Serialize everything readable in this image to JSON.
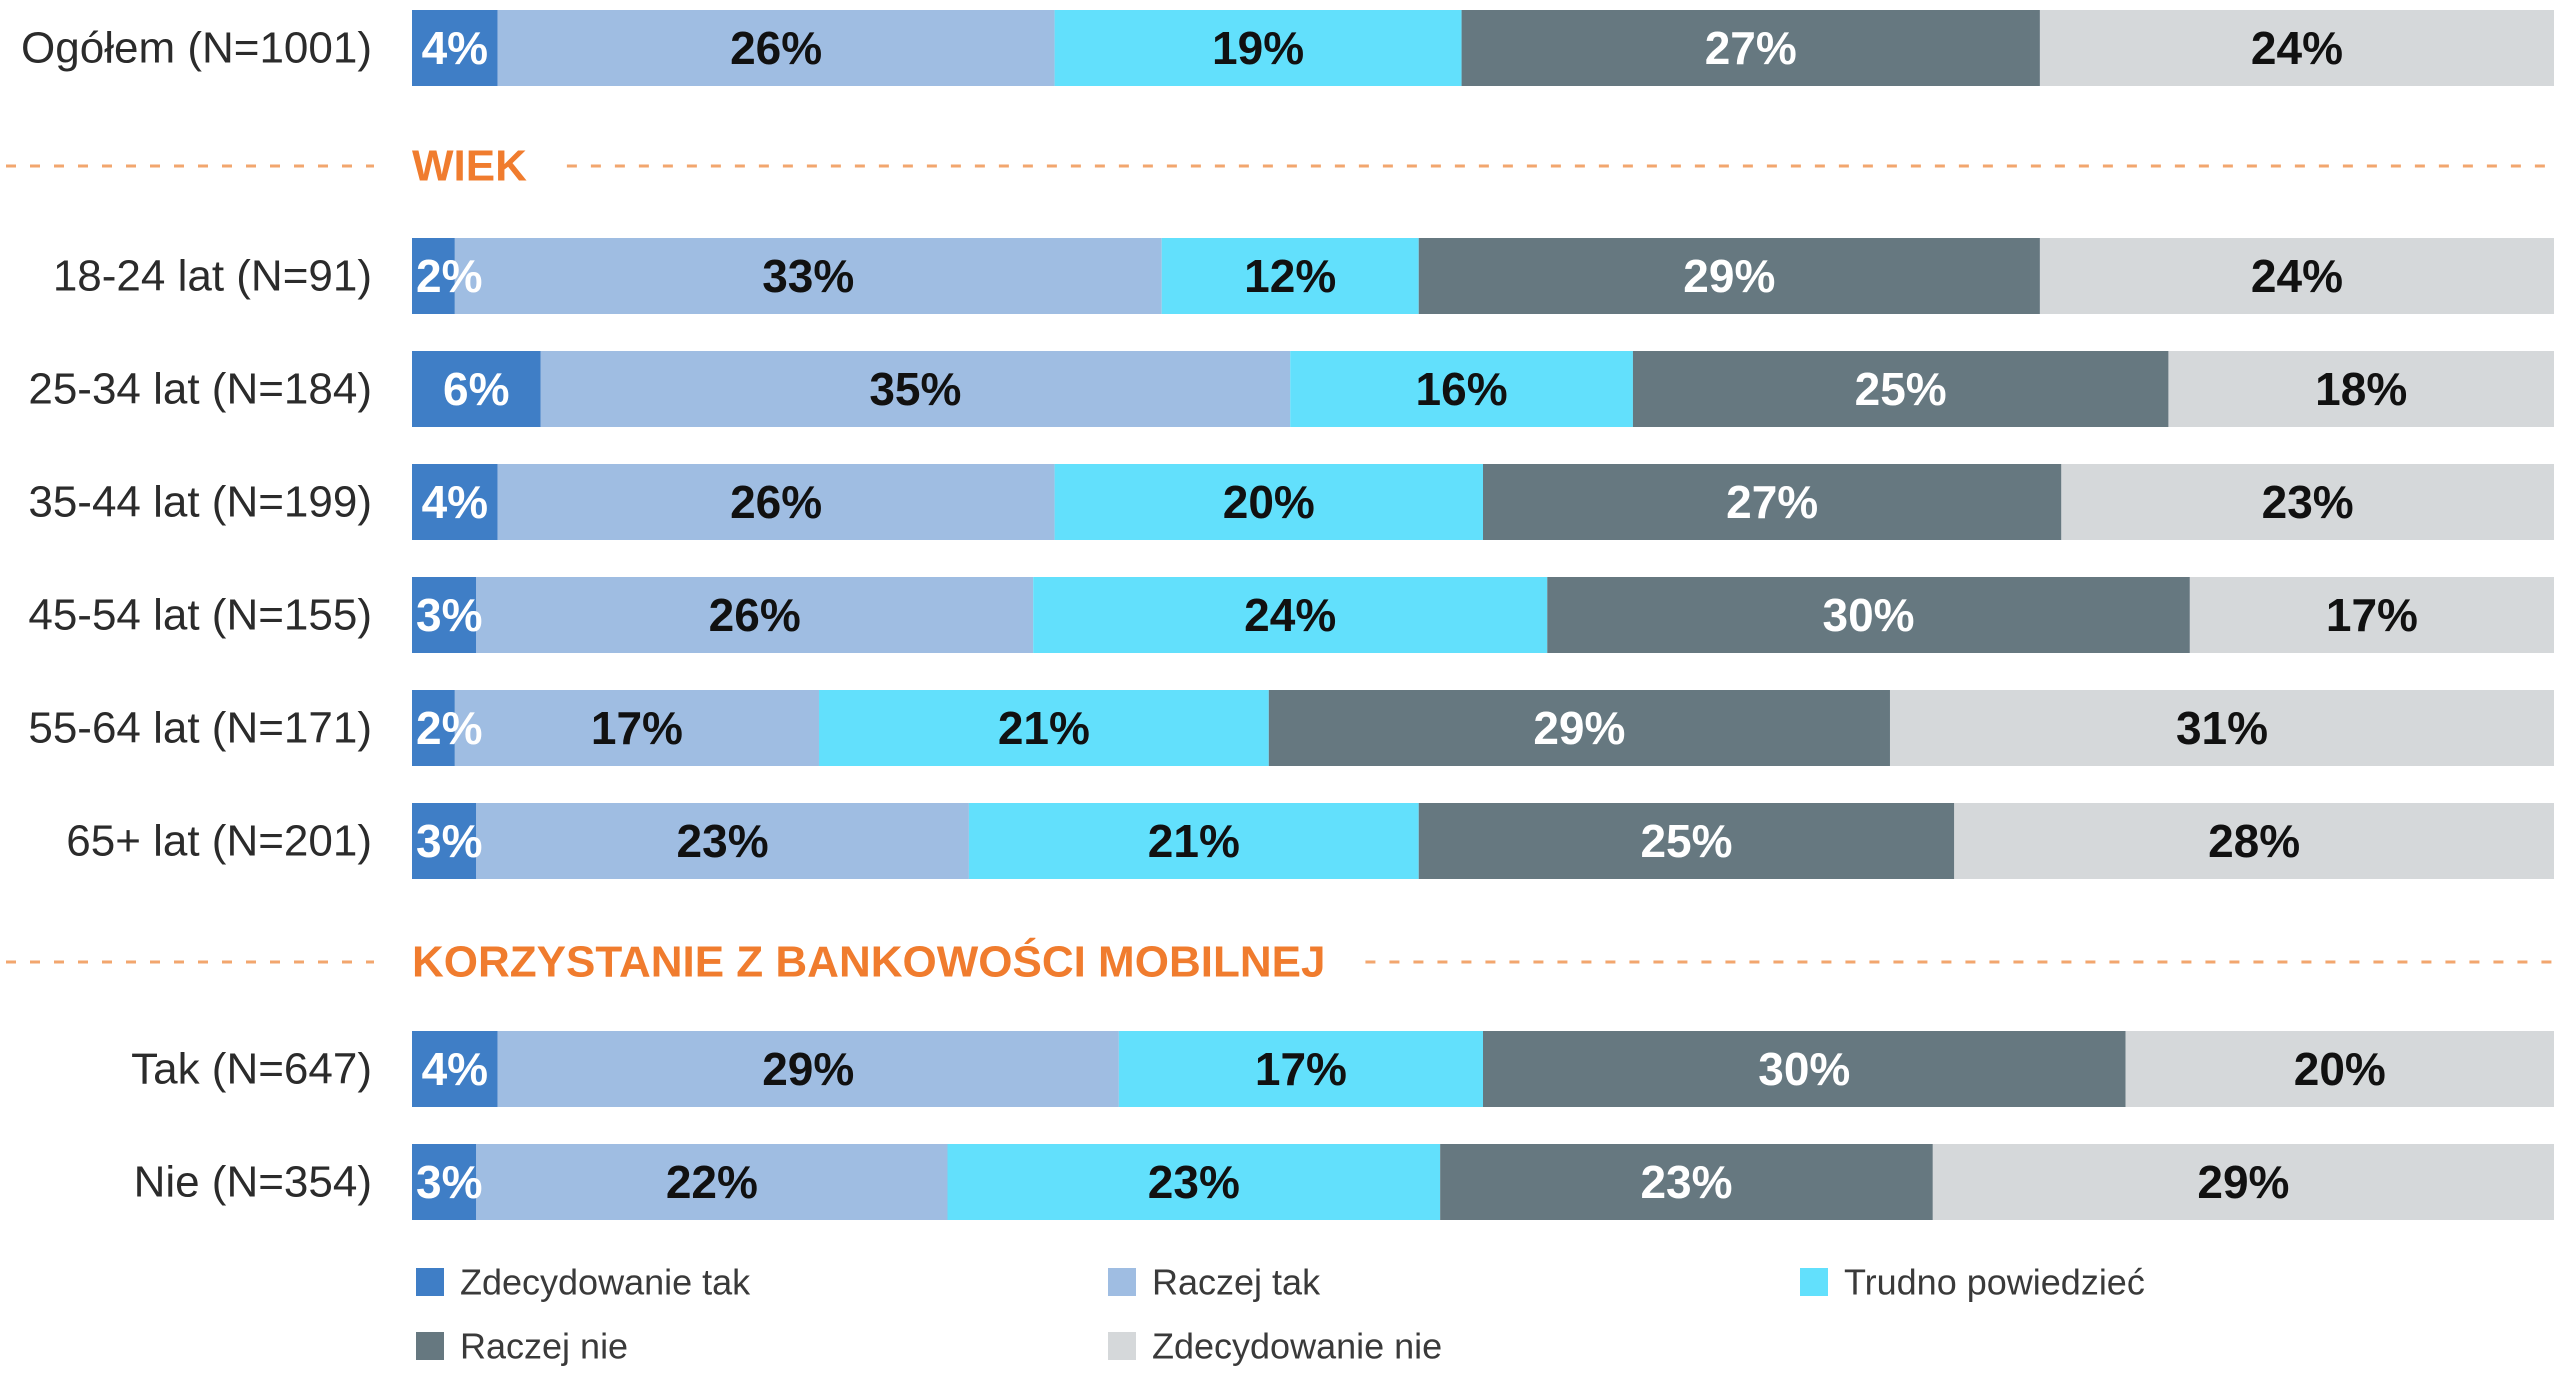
{
  "chart_data": {
    "type": "bar",
    "orientation": "horizontal",
    "stacked": true,
    "percent_stacked": true,
    "legend_placement": "bottom",
    "grid": false,
    "series": [
      {
        "name": "Zdecydowanie tak",
        "color": "#3f7ec6",
        "label_color": "#ffffff"
      },
      {
        "name": "Raczej tak",
        "color": "#9fbde2",
        "label_color": "#111111"
      },
      {
        "name": "Trudno powiedzieć",
        "color": "#62e0fc",
        "label_color": "#111111"
      },
      {
        "name": "Raczej nie",
        "color": "#667880",
        "label_color": "#ffffff"
      },
      {
        "name": "Zdecydowanie nie",
        "color": "#d5d8da",
        "label_color": "#111111"
      }
    ],
    "groups": [
      {
        "title": "",
        "rows": [
          {
            "category": "Ogółem (N=1001)",
            "values": [
              4,
              26,
              19,
              27,
              24
            ],
            "labels": [
              "4%",
              "26%",
              "19%",
              "27%",
              "24%"
            ]
          }
        ]
      },
      {
        "title": "WIEK",
        "rows": [
          {
            "category": "18-24 lat (N=91)",
            "values": [
              2,
              33,
              12,
              29,
              24
            ],
            "labels": [
              "2%",
              "33%",
              "12%",
              "29%",
              "24%"
            ]
          },
          {
            "category": "25-34 lat (N=184)",
            "values": [
              6,
              35,
              16,
              25,
              18
            ],
            "labels": [
              "6%",
              "35%",
              "16%",
              "25%",
              "18%"
            ]
          },
          {
            "category": "35-44 lat (N=199)",
            "values": [
              4,
              26,
              20,
              27,
              23
            ],
            "labels": [
              "4%",
              "26%",
              "20%",
              "27%",
              "23%"
            ]
          },
          {
            "category": "45-54 lat (N=155)",
            "values": [
              3,
              26,
              24,
              30,
              17
            ],
            "labels": [
              "3%",
              "26%",
              "24%",
              "30%",
              "17%"
            ]
          },
          {
            "category": "55-64 lat (N=171)",
            "values": [
              2,
              17,
              21,
              29,
              31
            ],
            "labels": [
              "2%",
              "17%",
              "21%",
              "29%",
              "31%"
            ]
          },
          {
            "category": "65+ lat (N=201)",
            "values": [
              3,
              23,
              21,
              25,
              28
            ],
            "labels": [
              "3%",
              "23%",
              "21%",
              "25%",
              "28%"
            ]
          }
        ]
      },
      {
        "title": "KORZYSTANIE Z BANKOWOŚCI MOBILNEJ",
        "rows": [
          {
            "category": "Tak (N=647)",
            "values": [
              4,
              29,
              17,
              30,
              20
            ],
            "labels": [
              "4%",
              "29%",
              "17%",
              "30%",
              "20%"
            ]
          },
          {
            "category": "Nie (N=354)",
            "values": [
              3,
              22,
              23,
              23,
              29
            ],
            "labels": [
              "3%",
              "22%",
              "23%",
              "23%",
              "29%"
            ]
          }
        ]
      }
    ],
    "section_title_color": "#f07c2e",
    "divider_color": "#f2a66e"
  }
}
